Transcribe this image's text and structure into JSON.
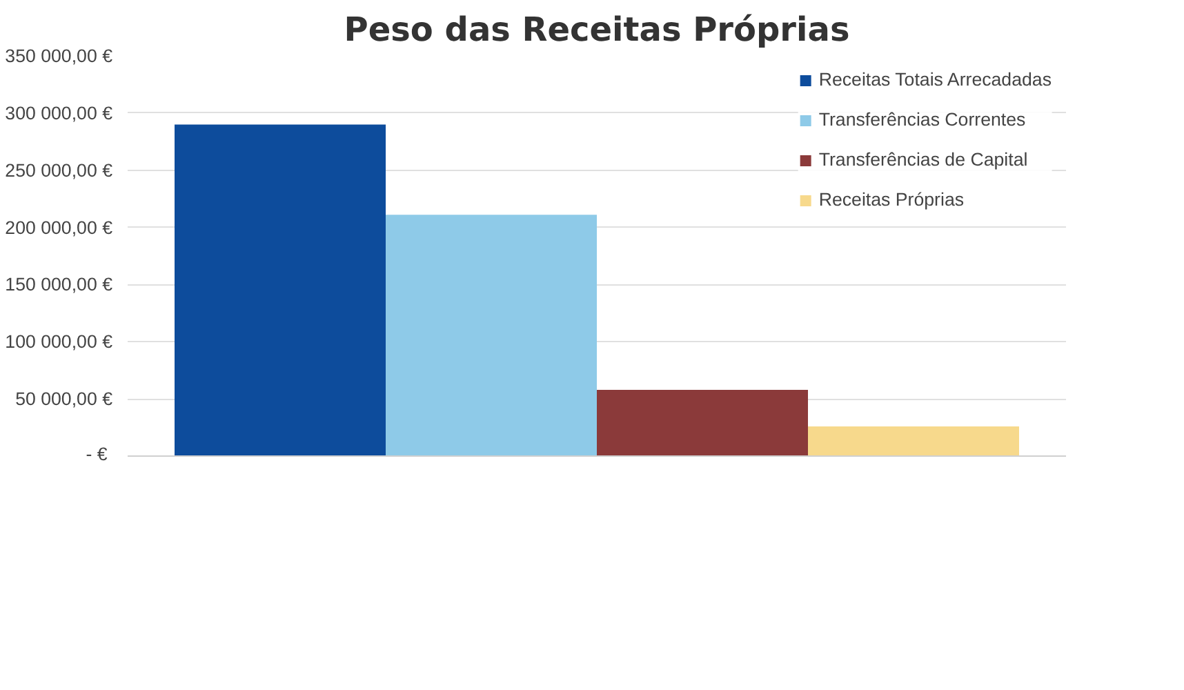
{
  "chart_data": {
    "type": "bar",
    "title": "Peso das Receitas Próprias",
    "categories": [
      null
    ],
    "series": [
      {
        "name": "Receitas Totais Arrecadadas",
        "color": "#0d4c9c",
        "values": [
          290000
        ]
      },
      {
        "name": "Transferências Correntes",
        "color": "#8ecae8",
        "values": [
          211000
        ]
      },
      {
        "name": "Transferências de Capital",
        "color": "#8b3a3a",
        "values": [
          58000
        ]
      },
      {
        "name": "Receitas Próprias",
        "color": "#f7d98c",
        "values": [
          26000
        ]
      }
    ],
    "ylim": [
      0,
      350000
    ],
    "yticks": [
      {
        "value": 0,
        "label": "-  €"
      },
      {
        "value": 50000,
        "label": "50 000,00 €"
      },
      {
        "value": 100000,
        "label": "100 000,00 €"
      },
      {
        "value": 150000,
        "label": "150 000,00 €"
      },
      {
        "value": 200000,
        "label": "200 000,00 €"
      },
      {
        "value": 250000,
        "label": "250 000,00 €"
      },
      {
        "value": 300000,
        "label": "300 000,00 €"
      },
      {
        "value": 350000,
        "label": "350 000,00 €"
      }
    ],
    "grid": "y",
    "legend": "top right",
    "tick_labels": "y"
  }
}
